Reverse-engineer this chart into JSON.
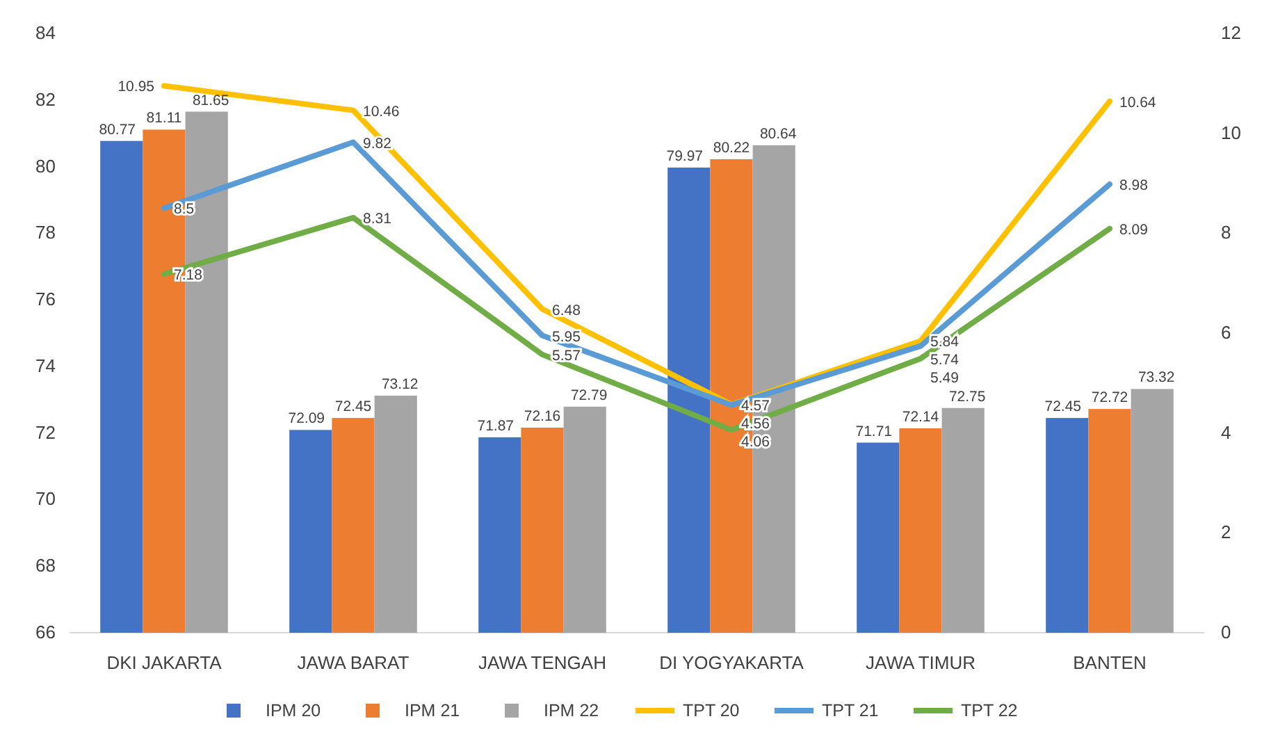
{
  "chart_data": {
    "type": "bar",
    "categories": [
      "DKI JAKARTA",
      "JAWA BARAT",
      "JAWA TENGAH",
      "DI YOGYAKARTA",
      "JAWA TIMUR",
      "BANTEN"
    ],
    "ylim": [
      66,
      84
    ],
    "yticks": [
      66,
      68,
      70,
      72,
      74,
      76,
      78,
      80,
      82,
      84
    ],
    "y2lim": [
      0,
      12
    ],
    "y2ticks": [
      0,
      2,
      4,
      6,
      8,
      10,
      12
    ],
    "series": [
      {
        "name": "IPM 20",
        "type": "bar",
        "color": "#4472c4",
        "values": [
          80.77,
          72.09,
          71.87,
          79.97,
          71.71,
          72.45
        ]
      },
      {
        "name": "IPM 21",
        "type": "bar",
        "color": "#ed7d31",
        "values": [
          81.11,
          72.45,
          72.16,
          80.22,
          72.14,
          72.72
        ]
      },
      {
        "name": "IPM 22",
        "type": "bar",
        "color": "#a5a5a5",
        "values": [
          81.65,
          73.12,
          72.79,
          80.64,
          72.75,
          73.32
        ]
      },
      {
        "name": "TPT 20",
        "type": "line",
        "axis": "y2",
        "color": "#ffc000",
        "values": [
          10.95,
          10.46,
          6.48,
          4.57,
          5.84,
          10.64
        ]
      },
      {
        "name": "TPT 21",
        "type": "line",
        "axis": "y2",
        "color": "#5b9bd5",
        "values": [
          8.5,
          9.82,
          5.95,
          4.56,
          5.74,
          8.98
        ]
      },
      {
        "name": "TPT 22",
        "type": "line",
        "axis": "y2",
        "color": "#70ad47",
        "values": [
          7.18,
          8.31,
          5.57,
          4.06,
          5.49,
          8.09
        ]
      }
    ],
    "data_labels": true,
    "grid": false,
    "legend": "bottom"
  }
}
